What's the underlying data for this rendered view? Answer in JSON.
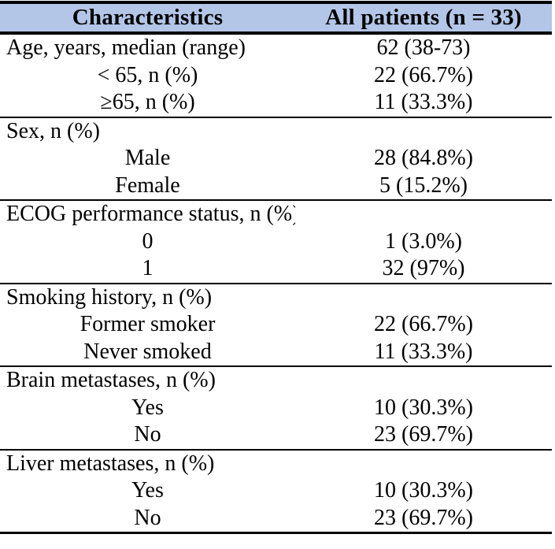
{
  "colors": {
    "header_bg": "#b4c6e7",
    "border": "#000000",
    "text": "#000000",
    "page_bg": "#ffffff"
  },
  "table": {
    "columns": {
      "col1": "Characteristics",
      "col2": "All patients (n = 33)"
    },
    "rows": [
      {
        "label": "Age, years, median (range)",
        "value": "62 (38-73)",
        "level": "section"
      },
      {
        "label": "< 65, n (%)",
        "value": "22 (66.7%)",
        "level": "sub"
      },
      {
        "label": "≥65, n (%)",
        "value": "11 (33.3%)",
        "level": "sub"
      },
      {
        "label": "Sex, n (%)",
        "value": "",
        "level": "section"
      },
      {
        "label": "Male",
        "value": "28 (84.8%)",
        "level": "sub"
      },
      {
        "label": "Female",
        "value": "5 (15.2%)",
        "level": "sub"
      },
      {
        "label": "ECOG performance status, n (%)",
        "value": "",
        "level": "section"
      },
      {
        "label": "0",
        "value": "1 (3.0%)",
        "level": "sub"
      },
      {
        "label": "1",
        "value": "32 (97%)",
        "level": "sub"
      },
      {
        "label": "Smoking history, n (%)",
        "value": "",
        "level": "section"
      },
      {
        "label": "Former smoker",
        "value": "22 (66.7%)",
        "level": "sub"
      },
      {
        "label": "Never smoked",
        "value": "11 (33.3%)",
        "level": "sub"
      },
      {
        "label": "Brain metastases, n (%)",
        "value": "",
        "level": "section"
      },
      {
        "label": "Yes",
        "value": "10 (30.3%)",
        "level": "sub"
      },
      {
        "label": "No",
        "value": "23 (69.7%)",
        "level": "sub"
      },
      {
        "label": "Liver metastases, n (%)",
        "value": "",
        "level": "section"
      },
      {
        "label": "Yes",
        "value": "10 (30.3%)",
        "level": "sub"
      },
      {
        "label": "No",
        "value": "23 (69.7%)",
        "level": "sub"
      }
    ]
  }
}
